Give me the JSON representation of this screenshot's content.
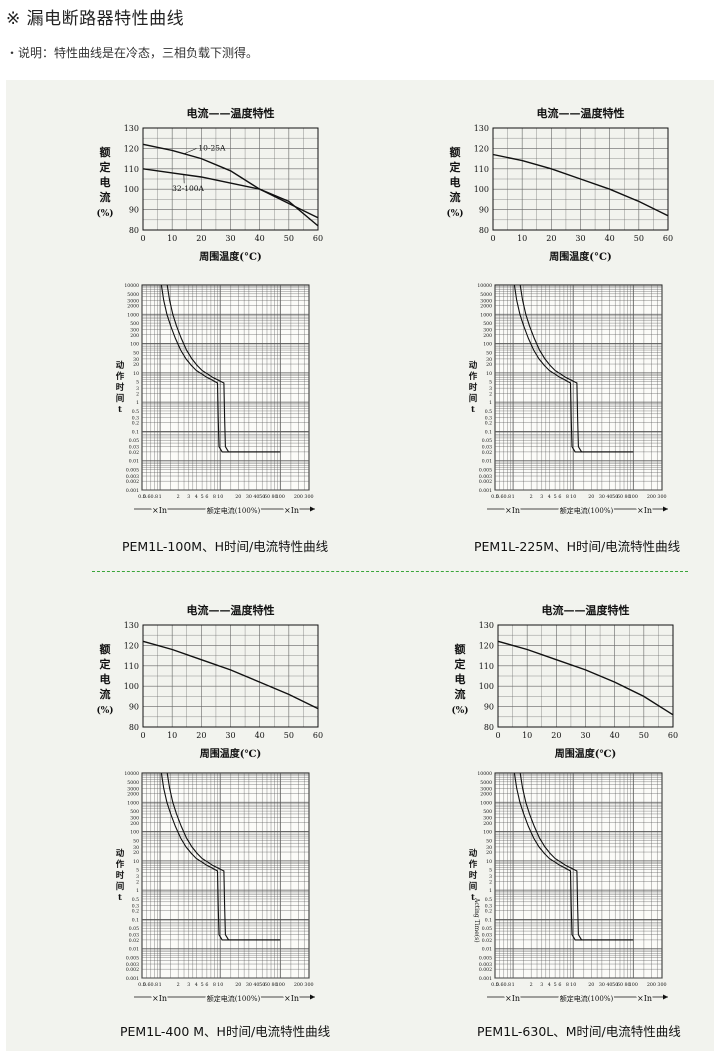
{
  "header": {
    "title": "※ 漏电断路器特性曲线",
    "note": "・说明：特性曲线是在冷态，三相负载下测得。"
  },
  "temp_chart": {
    "title": "电流——温度特性",
    "ylabel_chars": [
      "额",
      "定",
      "电",
      "流",
      "(%)"
    ],
    "xlabel_a": "周围温度(°C)",
    "xlabel_b": "周围温度(℃)",
    "x_ticks": [
      "0",
      "10",
      "20",
      "30",
      "40",
      "50",
      "60"
    ],
    "y_ticks": [
      "130",
      "120",
      "110",
      "100",
      "90",
      "80"
    ]
  },
  "trip_chart": {
    "ylabel_chars": [
      "动",
      "作",
      "时",
      "间",
      "t"
    ],
    "y_ticks": [
      "10000",
      "5000",
      "3000",
      "2000",
      "1000",
      "500",
      "300",
      "200",
      "100",
      "50",
      "30",
      "20",
      "10",
      "5",
      "3",
      "2",
      "1",
      "0.5",
      "0.3",
      "0.2",
      "0.1",
      "0.05",
      "0.03",
      "0.02",
      "0.01",
      "0.005",
      "0.003",
      "0.002",
      "0.001"
    ],
    "x_ticks": [
      "0.5",
      "0.6",
      "0.8",
      "1",
      "2",
      "3",
      "4",
      "5",
      "6",
      "8",
      "10",
      "20",
      "30",
      "40",
      "50",
      "60",
      "80",
      "100",
      "200",
      "300"
    ],
    "x_ticks_tight": [
      "0.5",
      "0.6",
      "0.8",
      "1",
      "2",
      "3",
      "4",
      "5",
      "6",
      "8",
      "10",
      "20",
      "30",
      "40",
      "50",
      "60",
      "80",
      "100",
      "200",
      "300"
    ],
    "xcaption_left": "×In",
    "xcaption_mid": "额定电流(100%)",
    "xcaption_right": "×In",
    "acting_time": "Acting Time(s)"
  },
  "captions": [
    "PEM1L-100M、H时间/电流特性曲线",
    "PEM1L-225M、H时间/电流特性曲线",
    "PEM1L-400 M、H时间/电流特性曲线",
    "PEM1L-630L、M时间/电流特性曲线"
  ],
  "chart_data": [
    {
      "type": "line",
      "title": "电流——温度特性",
      "xlabel": "周围温度(°C)",
      "ylabel": "额定电流(%)",
      "xlim": [
        0,
        60
      ],
      "ylim": [
        80,
        130
      ],
      "grid": true,
      "series": [
        {
          "name": "10-25A",
          "x": [
            0,
            10,
            20,
            30,
            40,
            50,
            60
          ],
          "y": [
            122,
            119,
            115,
            109,
            100,
            93,
            86
          ]
        },
        {
          "name": "32-100A",
          "x": [
            0,
            10,
            20,
            30,
            40,
            50,
            60
          ],
          "y": [
            110,
            108,
            106,
            103,
            100,
            94,
            82
          ]
        }
      ]
    },
    {
      "type": "line",
      "title": "电流——温度特性",
      "xlabel": "周围温度(°C)",
      "ylabel": "额定电流(%)",
      "xlim": [
        0,
        60
      ],
      "ylim": [
        80,
        130
      ],
      "grid": true,
      "series": [
        {
          "x": [
            0,
            10,
            20,
            30,
            40,
            50,
            60
          ],
          "y": [
            117,
            114,
            110,
            105,
            100,
            94,
            87
          ]
        }
      ]
    },
    {
      "type": "line",
      "title": "电流——温度特性",
      "xlabel": "周围温度(℃)",
      "ylabel": "额定电流(%)",
      "xlim": [
        0,
        60
      ],
      "ylim": [
        80,
        130
      ],
      "grid": true,
      "series": [
        {
          "x": [
            0,
            10,
            20,
            30,
            40,
            50,
            60
          ],
          "y": [
            122,
            118,
            113,
            108,
            102,
            96,
            89
          ]
        }
      ]
    },
    {
      "type": "line",
      "title": "电流——温度特性",
      "xlabel": "周围温度(℃)",
      "ylabel": "额定电流(%)",
      "xlim": [
        0,
        60
      ],
      "ylim": [
        80,
        130
      ],
      "grid": true,
      "series": [
        {
          "x": [
            0,
            10,
            20,
            30,
            40,
            50,
            60
          ],
          "y": [
            122,
            118,
            113,
            108,
            102,
            95,
            86
          ]
        }
      ]
    }
  ]
}
